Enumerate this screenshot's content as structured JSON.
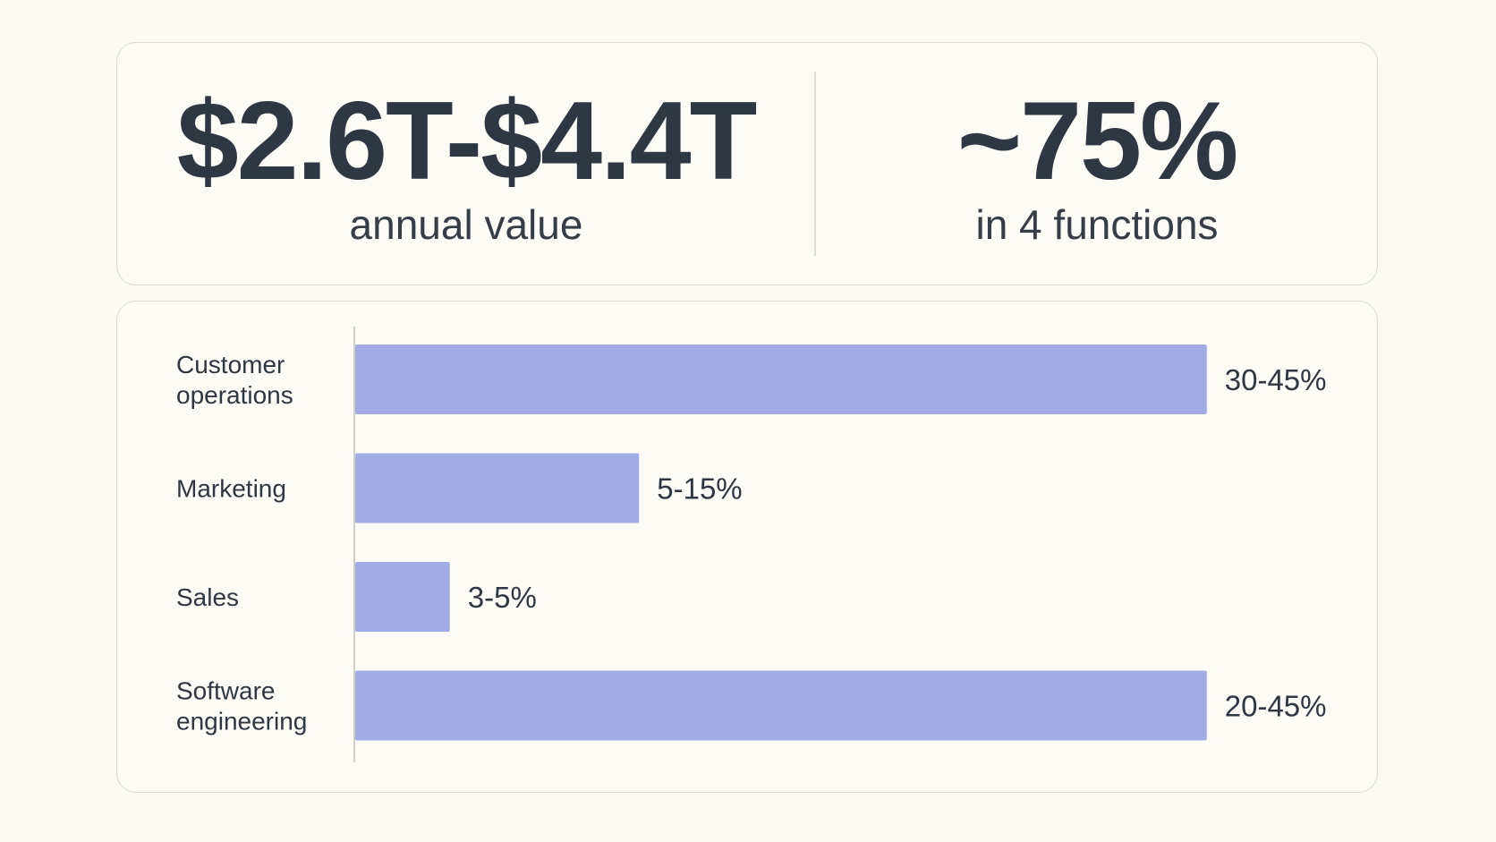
{
  "stats": [
    {
      "value": "$2.6T-$4.4T",
      "label": "annual value"
    },
    {
      "value": "~75%",
      "label": "in 4 functions"
    }
  ],
  "colors": {
    "bar": "#a2abe3",
    "text": "#2f3742",
    "axis": "#cfcfc9"
  },
  "chart_data": {
    "type": "bar",
    "orientation": "horizontal",
    "categories": [
      [
        "Customer",
        "operations"
      ],
      [
        "Marketing"
      ],
      [
        "Sales"
      ],
      [
        "Software",
        "engineering"
      ]
    ],
    "series": [
      {
        "ranges": [
          [
            30,
            45
          ],
          [
            5,
            15
          ],
          [
            3,
            5
          ],
          [
            20,
            45
          ]
        ],
        "labels": [
          "30-45%",
          "5-15%",
          "3-5%",
          "20-45%"
        ]
      }
    ],
    "grid": false,
    "legend": "none"
  }
}
